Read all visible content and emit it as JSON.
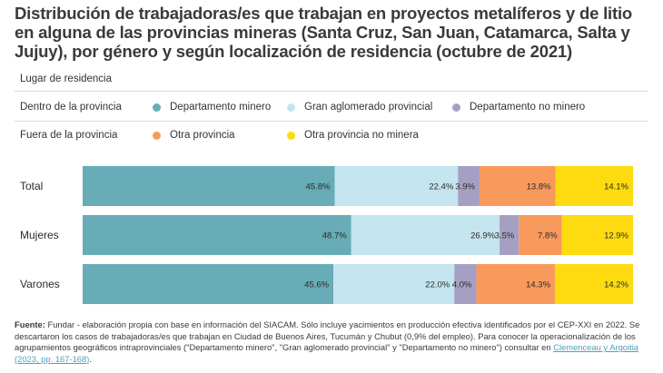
{
  "title": "Distribución de trabajadoras/es que trabajan en proyectos metalíferos y de litio en alguna de las provincias mineras (Santa Cruz, San Juan, Catamarca, Salta y Jujuy), por género y según localización de residencia (octubre de 2021)",
  "legend": {
    "heading": "Lugar de residencia",
    "groups": [
      {
        "label": "Dentro de la provincia",
        "items": [
          {
            "label": "Departamento minero",
            "color": "#67acb6",
            "icon": "circle-dot-icon"
          },
          {
            "label": "Gran aglomerado provincial",
            "color": "#c4e5ef",
            "icon": "circle-dot-icon"
          },
          {
            "label": "Departamento no minero",
            "color": "#a5a0c3",
            "icon": "circle-dot-icon"
          }
        ]
      },
      {
        "label": "Fuera de la provincia",
        "items": [
          {
            "label": "Otra provincia",
            "color": "#f79a5c",
            "icon": "circle-dot-icon"
          },
          {
            "label": "Otra provincia no minera",
            "color": "#fddb10",
            "icon": "circle-dot-icon"
          }
        ]
      }
    ]
  },
  "chart_data": {
    "type": "bar",
    "orientation": "horizontal",
    "stacked": true,
    "normalized_percent": true,
    "title": "Distribución de trabajadoras/es por género y según localización de residencia (octubre de 2021)",
    "xlabel": "",
    "ylabel": "",
    "xlim": [
      0,
      100
    ],
    "categories": [
      "Total",
      "Mujeres",
      "Varones"
    ],
    "series": [
      {
        "name": "Departamento minero",
        "color": "#67acb6",
        "values": [
          45.8,
          48.7,
          45.6
        ],
        "labels": [
          "45.8%",
          "48.7%",
          "45.6%"
        ]
      },
      {
        "name": "Gran aglomerado provincial",
        "color": "#c4e5ef",
        "values": [
          22.4,
          26.9,
          22.0
        ],
        "labels": [
          "22.4%",
          "26.9%",
          "22.0%"
        ]
      },
      {
        "name": "Departamento no minero",
        "color": "#a5a0c3",
        "values": [
          3.9,
          3.5,
          4.0
        ],
        "labels": [
          "3.9%",
          "3.5%",
          "4.0%"
        ]
      },
      {
        "name": "Otra provincia",
        "color": "#f79a5c",
        "values": [
          13.8,
          7.8,
          14.3
        ],
        "labels": [
          "13.8%",
          "7.8%",
          "14.3%"
        ]
      },
      {
        "name": "Otra provincia no minera",
        "color": "#fddb10",
        "values": [
          14.1,
          12.9,
          14.2
        ],
        "labels": [
          "14.1%",
          "12.9%",
          "14.2%"
        ]
      }
    ],
    "grid": false,
    "legend": "top"
  },
  "footnote": {
    "label": "Fuente:",
    "text": "Fundar - elaboración propia con base en información del SIACAM. Sólo incluye yacimientos en producción efectiva identificados por el CEP-XXI en 2022. Se descartaron los casos de trabajadoras/es que trabajan en Ciudad de Buenos Aires, Tucumán y Chubut (0,9% del empleo). Para conocer la operacionalización de los agrupamientos geográficos intraprovinciales (\"Departamento minero\", \"Gran aglomerado provincial\" y \"Departamento no minero\") consultar en",
    "link": "Clemenceau y Argoitia (2023, pp. 167-168)",
    "end": "."
  }
}
